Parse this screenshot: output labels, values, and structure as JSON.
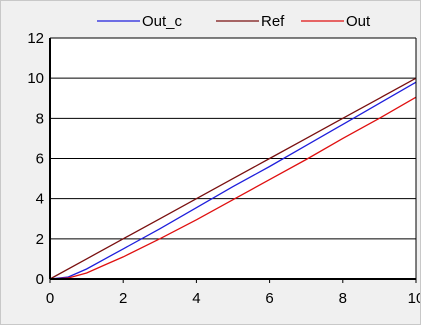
{
  "chart_data": {
    "type": "line",
    "title": "",
    "xlabel": "",
    "ylabel": "",
    "xlim": [
      0,
      10
    ],
    "ylim": [
      0,
      12
    ],
    "x_ticks": [
      "0",
      "2",
      "4",
      "6",
      "8",
      "10"
    ],
    "y_ticks": [
      "0",
      "2",
      "4",
      "6",
      "8",
      "10",
      "12"
    ],
    "grid": "horizontal",
    "legend_position": "top",
    "series": [
      {
        "name": "Out_c",
        "color": "#1f1fdc",
        "x": [
          0,
          0.5,
          1,
          1.5,
          2,
          3,
          4,
          5,
          6,
          7,
          8,
          9,
          10
        ],
        "y": [
          0,
          0.1,
          0.5,
          1.0,
          1.5,
          2.5,
          3.55,
          4.6,
          5.6,
          6.65,
          7.7,
          8.75,
          9.8
        ]
      },
      {
        "name": "Ref",
        "color": "#7a1010",
        "x": [
          0,
          1,
          2,
          3,
          4,
          5,
          6,
          7,
          8,
          9,
          10
        ],
        "y": [
          0,
          1,
          2,
          3,
          4,
          5,
          6,
          7,
          8,
          9,
          10
        ]
      },
      {
        "name": "Out",
        "color": "#e01010",
        "x": [
          0,
          0.5,
          1,
          1.5,
          2,
          3,
          4,
          5,
          6,
          7,
          8,
          9,
          10
        ],
        "y": [
          0,
          0.05,
          0.3,
          0.7,
          1.1,
          2.0,
          2.95,
          3.95,
          4.95,
          5.95,
          7.0,
          8.0,
          9.05
        ]
      }
    ]
  }
}
